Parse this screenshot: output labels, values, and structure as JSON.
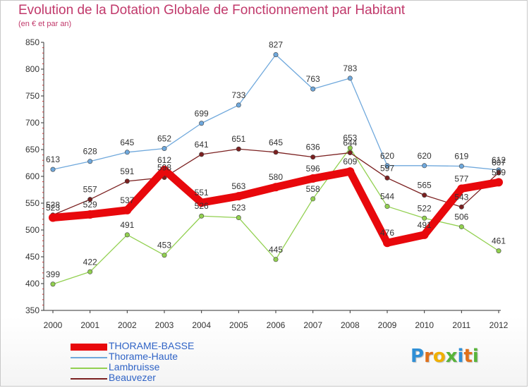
{
  "title": "Evolution de la Dotation Globale de Fonctionnement par Habitant",
  "subtitle": "(en € et par an)",
  "logo": {
    "text": "Proxiti",
    "letters": [
      {
        "ch": "P",
        "color": "#2f8fd6"
      },
      {
        "ch": "r",
        "color": "#e0701a"
      },
      {
        "ch": "o",
        "color": "#f0b000"
      },
      {
        "ch": "x",
        "color": "#58b43a"
      },
      {
        "ch": "i",
        "color": "#2f8fd6"
      },
      {
        "ch": "t",
        "color": "#e0701a"
      },
      {
        "ch": "i",
        "color": "#58b43a"
      }
    ]
  },
  "chart_data": {
    "type": "line",
    "title": "Evolution de la Dotation Globale de Fonctionnement par Habitant",
    "subtitle": "(en € et par an)",
    "xlabel": "",
    "ylabel": "",
    "x": [
      "2000",
      "2001",
      "2002",
      "2003",
      "2004",
      "2005",
      "2006",
      "2007",
      "2008",
      "2009",
      "2010",
      "2011",
      "2012"
    ],
    "ylim": [
      350,
      850
    ],
    "yticks": [
      350,
      400,
      450,
      500,
      550,
      600,
      650,
      700,
      750,
      800,
      850
    ],
    "grid": false,
    "legend_position": "bottom-left",
    "series": [
      {
        "name": "THORAME-BASSE",
        "color": "#e8080c",
        "values": [
          523,
          529,
          537,
          612,
          551,
          563,
          580,
          596,
          609,
          476,
          491,
          577,
          589
        ],
        "labels": [
          "523",
          "529",
          "537",
          "612",
          "551",
          "563",
          "580",
          "596",
          "609",
          "476",
          "491",
          "577",
          "589"
        ]
      },
      {
        "name": "Thorame-Haute",
        "color": "#6fa8dc",
        "values": [
          613,
          628,
          645,
          652,
          699,
          733,
          827,
          763,
          783,
          620,
          620,
          619,
          612
        ],
        "labels": [
          "613",
          "628",
          "645",
          "652",
          "699",
          "733",
          "827",
          "763",
          "783",
          "620",
          "620",
          "619",
          "612"
        ]
      },
      {
        "name": "Lambruisse",
        "color": "#92d050",
        "values": [
          399,
          422,
          491,
          453,
          526,
          523,
          445,
          558,
          653,
          544,
          522,
          506,
          461
        ],
        "labels": [
          "399",
          "422",
          "491",
          "453",
          "526",
          "523",
          "445",
          "558",
          "653",
          "544",
          "522",
          "506",
          "461"
        ]
      },
      {
        "name": "Beauvezer",
        "color": "#7b2020",
        "values": [
          528,
          557,
          591,
          598,
          641,
          651,
          645,
          636,
          644,
          597,
          565,
          543,
          607
        ],
        "labels": [
          "528",
          "557",
          "591",
          "598",
          "641",
          "651",
          "645",
          "636",
          "644",
          "597",
          "565",
          "543",
          "607"
        ]
      }
    ]
  }
}
